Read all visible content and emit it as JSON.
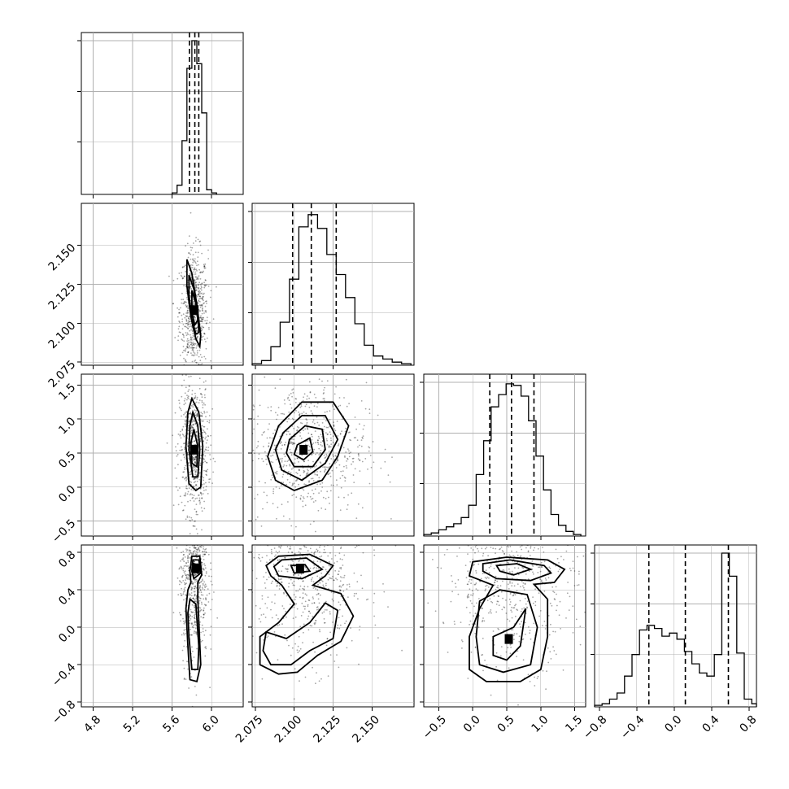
{
  "chart_data": {
    "type": "corner",
    "title": "",
    "grid": true,
    "parameters": [
      {
        "range": [
          4.68,
          6.32
        ],
        "ticks": [
          4.8,
          5.2,
          5.6,
          6.0
        ],
        "tick_labels": [
          "4.8",
          "5.2",
          "5.6",
          "6.0"
        ],
        "histogram": {
          "bins": [
            5.6,
            5.65,
            5.7,
            5.75,
            5.8,
            5.85,
            5.9,
            5.95,
            6.0,
            6.05
          ],
          "counts": [
            0.01,
            0.06,
            0.35,
            0.82,
            1.0,
            0.85,
            0.53,
            0.03,
            0.01
          ]
        },
        "quantiles": [
          5.775,
          5.83,
          5.87
        ],
        "mode": 5.82,
        "spread": 0.045
      },
      {
        "range": [
          2.073,
          2.177
        ],
        "ticks": [
          2.075,
          2.1,
          2.125,
          2.15
        ],
        "tick_labels": [
          "2.075",
          "2.100",
          "2.125",
          "2.150"
        ],
        "histogram": {
          "bins": [
            2.073,
            2.079,
            2.085,
            2.091,
            2.097,
            2.103,
            2.109,
            2.115,
            2.121,
            2.127,
            2.133,
            2.139,
            2.145,
            2.151,
            2.157,
            2.163,
            2.169,
            2.175
          ],
          "counts": [
            0.01,
            0.03,
            0.12,
            0.28,
            0.56,
            0.9,
            0.98,
            0.89,
            0.72,
            0.59,
            0.44,
            0.27,
            0.13,
            0.06,
            0.04,
            0.02,
            0.01
          ]
        },
        "quantiles": [
          2.099,
          2.111,
          2.127
        ],
        "mode": 2.108,
        "spread": 0.012
      },
      {
        "range": [
          -0.72,
          1.66
        ],
        "ticks": [
          -0.5,
          0.0,
          0.5,
          1.0,
          1.5
        ],
        "tick_labels": [
          "−0.5",
          "0.0",
          "0.5",
          "1.0",
          "1.5"
        ],
        "histogram": {
          "bins": [
            -0.72,
            -0.61,
            -0.5,
            -0.39,
            -0.28,
            -0.17,
            -0.06,
            0.05,
            0.16,
            0.27,
            0.38,
            0.49,
            0.6,
            0.71,
            0.82,
            0.93,
            1.04,
            1.15,
            1.26,
            1.37,
            1.48,
            1.59
          ],
          "counts": [
            0.01,
            0.02,
            0.04,
            0.06,
            0.08,
            0.12,
            0.2,
            0.4,
            0.62,
            0.84,
            0.92,
            0.99,
            0.98,
            0.91,
            0.75,
            0.52,
            0.3,
            0.14,
            0.07,
            0.03,
            0.01
          ]
        },
        "quantiles": [
          0.25,
          0.57,
          0.9
        ],
        "mode": 0.57,
        "spread": 0.3
      },
      {
        "range": [
          -0.85,
          0.88
        ],
        "ticks": [
          -0.8,
          -0.4,
          0.0,
          0.4,
          0.8
        ],
        "tick_labels": [
          "−0.8",
          "−0.4",
          "0.0",
          "0.4",
          "0.8"
        ],
        "histogram": {
          "bins": [
            -0.85,
            -0.77,
            -0.69,
            -0.61,
            -0.53,
            -0.45,
            -0.37,
            -0.29,
            -0.21,
            -0.13,
            -0.05,
            0.03,
            0.11,
            0.19,
            0.27,
            0.35,
            0.43,
            0.51,
            0.59,
            0.67,
            0.75,
            0.83,
            0.88
          ],
          "counts": [
            0.01,
            0.02,
            0.05,
            0.09,
            0.2,
            0.34,
            0.5,
            0.53,
            0.51,
            0.46,
            0.48,
            0.44,
            0.36,
            0.28,
            0.22,
            0.2,
            0.34,
            1.0,
            0.85,
            0.35,
            0.05,
            0.02
          ]
        },
        "quantiles": [
          -0.27,
          0.12,
          0.58
        ],
        "mode": 0.58,
        "spread": 0.3
      }
    ],
    "pairs": [
      {
        "row": 1,
        "col": 0,
        "contours": [
          [
            [
              5.75,
              2.141
            ],
            [
              5.8,
              2.132
            ],
            [
              5.85,
              2.112
            ],
            [
              5.89,
              2.092
            ],
            [
              5.88,
              2.085
            ],
            [
              5.84,
              2.09
            ],
            [
              5.79,
              2.104
            ],
            [
              5.75,
              2.124
            ]
          ],
          [
            [
              5.77,
              2.131
            ],
            [
              5.82,
              2.122
            ],
            [
              5.86,
              2.106
            ],
            [
              5.87,
              2.094
            ],
            [
              5.84,
              2.093
            ],
            [
              5.8,
              2.103
            ],
            [
              5.77,
              2.118
            ]
          ],
          [
            [
              5.8,
              2.121
            ],
            [
              5.84,
              2.113
            ],
            [
              5.86,
              2.102
            ],
            [
              5.83,
              2.099
            ],
            [
              5.8,
              2.107
            ]
          ]
        ]
      },
      {
        "row": 2,
        "col": 0,
        "contours": [
          [
            [
              5.8,
              1.3
            ],
            [
              5.87,
              1.1
            ],
            [
              5.91,
              0.6
            ],
            [
              5.89,
              0.0
            ],
            [
              5.84,
              -0.05
            ],
            [
              5.77,
              0.05
            ],
            [
              5.74,
              0.6
            ],
            [
              5.76,
              1.1
            ]
          ],
          [
            [
              5.81,
              1.1
            ],
            [
              5.86,
              0.9
            ],
            [
              5.88,
              0.55
            ],
            [
              5.86,
              0.15
            ],
            [
              5.81,
              0.15
            ],
            [
              5.77,
              0.55
            ],
            [
              5.78,
              0.9
            ]
          ],
          [
            [
              5.82,
              0.85
            ],
            [
              5.86,
              0.6
            ],
            [
              5.85,
              0.3
            ],
            [
              5.8,
              0.35
            ],
            [
              5.79,
              0.65
            ]
          ]
        ]
      },
      {
        "row": 2,
        "col": 1,
        "contours": [
          [
            [
              2.09,
              0.9
            ],
            [
              2.105,
              1.25
            ],
            [
              2.125,
              1.25
            ],
            [
              2.135,
              0.9
            ],
            [
              2.128,
              0.45
            ],
            [
              2.118,
              0.1
            ],
            [
              2.1,
              -0.05
            ],
            [
              2.088,
              0.1
            ],
            [
              2.083,
              0.45
            ]
          ],
          [
            [
              2.093,
              0.8
            ],
            [
              2.105,
              1.05
            ],
            [
              2.12,
              1.05
            ],
            [
              2.128,
              0.7
            ],
            [
              2.12,
              0.35
            ],
            [
              2.105,
              0.1
            ],
            [
              2.092,
              0.25
            ],
            [
              2.088,
              0.55
            ]
          ],
          [
            [
              2.097,
              0.7
            ],
            [
              2.107,
              0.9
            ],
            [
              2.118,
              0.85
            ],
            [
              2.12,
              0.55
            ],
            [
              2.112,
              0.3
            ],
            [
              2.1,
              0.3
            ],
            [
              2.095,
              0.5
            ]
          ],
          [
            [
              2.102,
              0.62
            ],
            [
              2.11,
              0.72
            ],
            [
              2.112,
              0.52
            ],
            [
              2.106,
              0.4
            ],
            [
              2.1,
              0.48
            ]
          ]
        ]
      },
      {
        "row": 3,
        "col": 0,
        "contours": [
          [
            [
              5.8,
              0.76
            ],
            [
              5.88,
              0.76
            ],
            [
              5.9,
              0.56
            ],
            [
              5.86,
              0.48
            ],
            [
              5.86,
              0.3
            ],
            [
              5.89,
              -0.4
            ],
            [
              5.85,
              -0.58
            ],
            [
              5.78,
              -0.56
            ],
            [
              5.76,
              -0.2
            ],
            [
              5.74,
              0.2
            ],
            [
              5.76,
              0.4
            ],
            [
              5.79,
              0.48
            ],
            [
              5.78,
              0.6
            ]
          ],
          [
            [
              5.81,
              0.72
            ],
            [
              5.87,
              0.72
            ],
            [
              5.89,
              0.58
            ],
            [
              5.82,
              0.52
            ],
            [
              5.8,
              0.6
            ]
          ],
          [
            [
              5.78,
              0.3
            ],
            [
              5.84,
              0.25
            ],
            [
              5.87,
              -0.2
            ],
            [
              5.86,
              -0.45
            ],
            [
              5.8,
              -0.45
            ],
            [
              5.77,
              -0.1
            ],
            [
              5.76,
              0.15
            ]
          ],
          [
            [
              5.82,
              0.68
            ],
            [
              5.86,
              0.66
            ],
            [
              5.86,
              0.58
            ],
            [
              5.82,
              0.6
            ]
          ]
        ]
      },
      {
        "row": 3,
        "col": 1,
        "contours": [
          [
            [
              2.09,
              0.76
            ],
            [
              2.11,
              0.78
            ],
            [
              2.125,
              0.66
            ],
            [
              2.12,
              0.55
            ],
            [
              2.112,
              0.45
            ],
            [
              2.13,
              0.36
            ],
            [
              2.138,
              0.12
            ],
            [
              2.13,
              -0.15
            ],
            [
              2.115,
              -0.3
            ],
            [
              2.102,
              -0.48
            ],
            [
              2.09,
              -0.5
            ],
            [
              2.078,
              -0.4
            ],
            [
              2.078,
              -0.1
            ],
            [
              2.09,
              0.05
            ],
            [
              2.1,
              0.25
            ],
            [
              2.092,
              0.45
            ],
            [
              2.085,
              0.55
            ],
            [
              2.082,
              0.66
            ]
          ],
          [
            [
              2.092,
              0.72
            ],
            [
              2.108,
              0.74
            ],
            [
              2.118,
              0.62
            ],
            [
              2.105,
              0.52
            ],
            [
              2.09,
              0.55
            ],
            [
              2.087,
              0.65
            ]
          ],
          [
            [
              2.082,
              -0.05
            ],
            [
              2.095,
              -0.12
            ],
            [
              2.11,
              0.05
            ],
            [
              2.12,
              0.26
            ],
            [
              2.128,
              0.18
            ],
            [
              2.125,
              -0.12
            ],
            [
              2.11,
              -0.25
            ],
            [
              2.098,
              -0.4
            ],
            [
              2.085,
              -0.4
            ],
            [
              2.08,
              -0.25
            ]
          ],
          [
            [
              2.098,
              0.66
            ],
            [
              2.107,
              0.67
            ],
            [
              2.11,
              0.6
            ],
            [
              2.1,
              0.58
            ]
          ]
        ]
      },
      {
        "row": 3,
        "col": 2,
        "contours": [
          [
            [
              0.0,
              0.7
            ],
            [
              0.5,
              0.75
            ],
            [
              1.1,
              0.72
            ],
            [
              1.35,
              0.62
            ],
            [
              1.2,
              0.48
            ],
            [
              0.9,
              0.46
            ],
            [
              1.1,
              0.3
            ],
            [
              1.1,
              -0.1
            ],
            [
              1.0,
              -0.45
            ],
            [
              0.7,
              -0.58
            ],
            [
              0.2,
              -0.58
            ],
            [
              -0.05,
              -0.45
            ],
            [
              -0.05,
              -0.1
            ],
            [
              0.1,
              0.2
            ],
            [
              0.3,
              0.45
            ],
            [
              -0.05,
              0.55
            ]
          ],
          [
            [
              0.15,
              0.68
            ],
            [
              0.55,
              0.72
            ],
            [
              1.05,
              0.66
            ],
            [
              1.15,
              0.58
            ],
            [
              0.85,
              0.5
            ],
            [
              0.35,
              0.52
            ],
            [
              0.15,
              0.6
            ]
          ],
          [
            [
              0.1,
              0.28
            ],
            [
              0.4,
              0.4
            ],
            [
              0.8,
              0.35
            ],
            [
              0.95,
              0.0
            ],
            [
              0.85,
              -0.4
            ],
            [
              0.45,
              -0.48
            ],
            [
              0.1,
              -0.4
            ],
            [
              0.05,
              -0.1
            ]
          ],
          [
            [
              0.35,
              0.66
            ],
            [
              0.65,
              0.68
            ],
            [
              0.85,
              0.62
            ],
            [
              0.6,
              0.56
            ],
            [
              0.4,
              0.6
            ]
          ],
          [
            [
              0.3,
              -0.1
            ],
            [
              0.6,
              0.0
            ],
            [
              0.78,
              0.2
            ],
            [
              0.7,
              -0.2
            ],
            [
              0.5,
              -0.35
            ],
            [
              0.3,
              -0.3
            ]
          ]
        ]
      }
    ]
  }
}
